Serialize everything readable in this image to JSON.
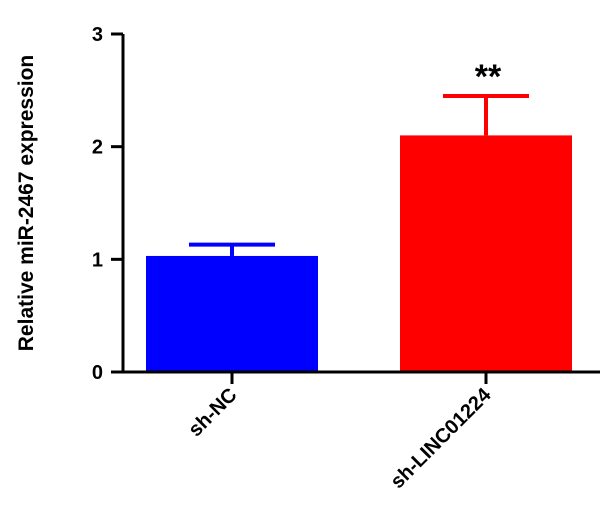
{
  "chart_data": {
    "type": "bar",
    "title": "",
    "xlabel": "",
    "ylabel": "Relative miR-2467 expression",
    "ylim": [
      0,
      3
    ],
    "yticks": [
      "0",
      "1",
      "2",
      "3"
    ],
    "categories": [
      "sh-NC",
      "sh-LINC01224"
    ],
    "values": [
      1.03,
      2.1
    ],
    "error_up": [
      0.1,
      0.35
    ],
    "colors": [
      "#0000ff",
      "#ff0000"
    ],
    "annotations": [
      "",
      "**"
    ],
    "grid": false,
    "legend": "none"
  }
}
